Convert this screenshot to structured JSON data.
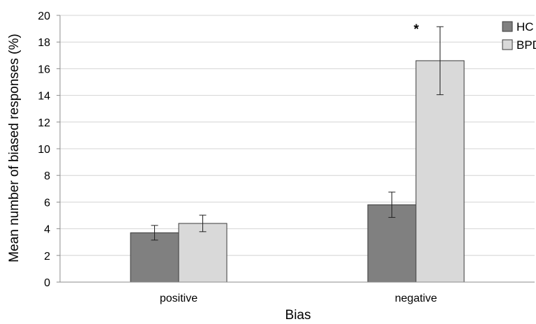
{
  "chart_data": {
    "type": "bar",
    "title": "",
    "xlabel": "Bias",
    "ylabel": "Mean number of biased responses (%)",
    "categories": [
      "positive",
      "negative"
    ],
    "ylim": [
      0,
      20
    ],
    "yticks": [
      0,
      2,
      4,
      6,
      8,
      10,
      12,
      14,
      16,
      18,
      20
    ],
    "grid": true,
    "legend": "top-right",
    "series": [
      {
        "name": "HC",
        "color": "#808080",
        "values": [
          3.7,
          5.8
        ],
        "error": [
          0.55,
          0.95
        ]
      },
      {
        "name": "BPD",
        "color": "#d9d9d9",
        "values": [
          4.4,
          16.6
        ],
        "error": [
          0.62,
          2.55
        ]
      }
    ],
    "annotations": [
      {
        "text": "*",
        "category": "negative",
        "series": "BPD"
      }
    ]
  }
}
